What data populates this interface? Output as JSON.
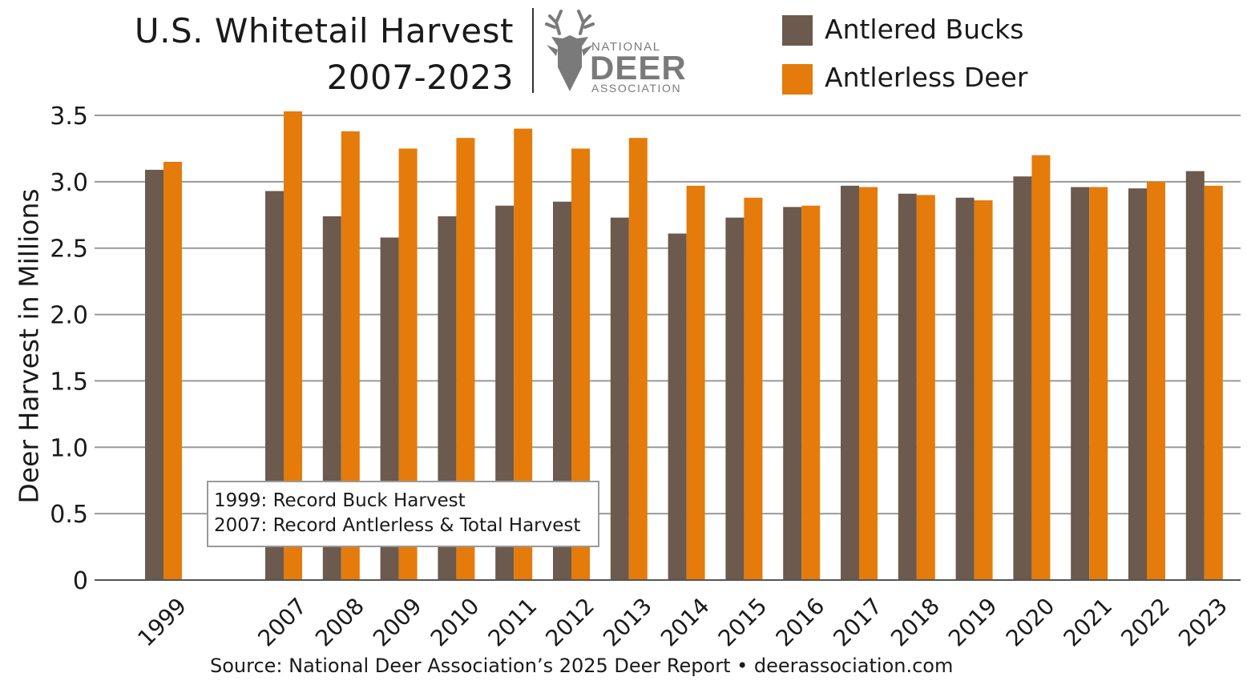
{
  "title": {
    "line1": "U.S. Whitetail Harvest",
    "line2": "2007-2023"
  },
  "logo": {
    "line1": "NATIONAL",
    "line2": "DEER",
    "line3": "ASSOCIATION",
    "icon": "deer-head-icon"
  },
  "note": {
    "line1": "1999: Record Buck Harvest",
    "line2": "2007: Record Antlerless & Total Harvest"
  },
  "source": "Source: National Deer Association’s 2025 Deer Report • deerassociation.com",
  "colors": {
    "antlered": "#6b5a4d",
    "antlerless": "#e57b0a",
    "grid": "#9a9a9a",
    "logo": "#7a7a7a"
  },
  "chart_data": {
    "type": "bar",
    "title": "U.S. Whitetail Harvest 2007-2023",
    "xlabel": "",
    "ylabel": "Deer Harvest in Millions",
    "ylim": [
      0,
      3.5
    ],
    "yticks": [
      "0",
      "0.5",
      "1.0",
      "1.5",
      "2.0",
      "2.5",
      "3.0",
      "3.5"
    ],
    "grid": true,
    "legend_position": "top-right",
    "categories": [
      "1999",
      "2007",
      "2008",
      "2009",
      "2010",
      "2011",
      "2012",
      "2013",
      "2014",
      "2015",
      "2016",
      "2017",
      "2018",
      "2019",
      "2020",
      "2021",
      "2022",
      "2023"
    ],
    "series": [
      {
        "name": "Antlered Bucks",
        "color": "#6b5a4d",
        "values": [
          3.09,
          2.93,
          2.74,
          2.58,
          2.74,
          2.82,
          2.85,
          2.73,
          2.61,
          2.73,
          2.81,
          2.97,
          2.91,
          2.88,
          3.04,
          2.96,
          2.95,
          3.08
        ]
      },
      {
        "name": "Antlerless Deer",
        "color": "#e57b0a",
        "values": [
          3.15,
          3.53,
          3.38,
          3.25,
          3.33,
          3.4,
          3.25,
          3.33,
          2.97,
          2.88,
          2.82,
          2.96,
          2.9,
          2.86,
          3.2,
          2.96,
          3.0,
          2.97
        ]
      }
    ]
  }
}
